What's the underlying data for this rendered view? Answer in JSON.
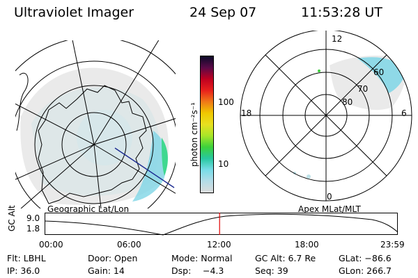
{
  "header": {
    "instrument": "Ultraviolet Imager",
    "date": "24 Sep 07",
    "time": "11:53:28 UT"
  },
  "left_panel": {
    "caption": "Geographic Lat/Lon"
  },
  "right_panel": {
    "caption": "Apex MLat/MLT",
    "mlt_labels": {
      "top": "12",
      "left": "18",
      "right": "6",
      "bottom": "0"
    },
    "mlat_labels": [
      "60",
      "70",
      "80"
    ]
  },
  "colorbar": {
    "unit_label": "photon cm⁻²s⁻¹",
    "tick_labels": [
      "100",
      "10"
    ],
    "scale": "log",
    "colors": [
      "#0a0a28",
      "#5a0a48",
      "#c00020",
      "#e8201c",
      "#f07818",
      "#f0c800",
      "#e8e020",
      "#a8e628",
      "#3cd23c",
      "#28c8a0",
      "#78dce8",
      "#b4dce8",
      "#dcdcdc"
    ]
  },
  "timeline": {
    "y_label": "GC Alt",
    "y_ticks": [
      "9.0",
      "1.8"
    ],
    "x_ticks": [
      "00:00",
      "06:00",
      "12:00",
      "18:00",
      "23:59"
    ],
    "current_time_fraction": 0.4955,
    "marker_color": "#e00000"
  },
  "params": {
    "row1": {
      "flt": "Flt: LBHL",
      "door": "Door: Open",
      "mode": "Mode: Normal",
      "gc_alt": "GC Alt: 6.7 Re",
      "glat": "GLat: −86.6"
    },
    "row2": {
      "ip": "IP: 36.0",
      "gain": "Gain: 14",
      "dsp_label": "Dsp:",
      "dsp_value": "−4.3",
      "seq": "Seq: 39",
      "glon": "GLon: 266.7"
    }
  },
  "colors": {
    "aurora": "#7fd6e6",
    "aurora_bright": "#40d890",
    "background": "#ffffff"
  }
}
